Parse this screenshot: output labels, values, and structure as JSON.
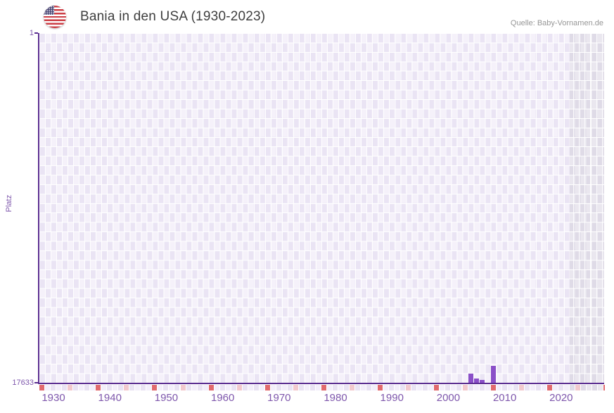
{
  "header": {
    "title": "Bania in den USA (1930-2023)",
    "source": "Quelle: Baby-Vornamen.de",
    "flag_icon": "usa-flag-icon"
  },
  "chart_data": {
    "type": "bar",
    "title": "Bania in den USA (1930-2023)",
    "xlabel": "",
    "ylabel": "Platz",
    "y_axis_top_label": "1",
    "y_axis_bottom_label": "17633",
    "y_domain": [
      1,
      17633
    ],
    "y_inverted": true,
    "x_domain": [
      1928,
      2028
    ],
    "x_ticks": [
      "1930",
      "1940",
      "1950",
      "1960",
      "1970",
      "1980",
      "1990",
      "2000",
      "2010",
      "2020"
    ],
    "grid": true,
    "legend": false,
    "points": [
      {
        "year": 2004,
        "rank": 17160
      },
      {
        "year": 2005,
        "rank": 17420
      },
      {
        "year": 2006,
        "rank": 17490
      },
      {
        "year": 2008,
        "rank": 16780
      }
    ],
    "no_data_band": {
      "from": 2022,
      "to": 2028
    },
    "axis_markers": {
      "red_years": [
        1928,
        1938,
        1948,
        1958,
        1968,
        1978,
        1988,
        1998,
        2008,
        2018,
        2028
      ],
      "pink_years": [
        1933,
        1943,
        1953,
        1963,
        1973,
        1983,
        1993,
        2003,
        2013,
        2023
      ]
    },
    "colors": {
      "bar": "#8a4fc8",
      "axis": "#5b2e91",
      "tick_label": "#7e57ac",
      "cell_light": "#f5f1fa",
      "cell_dark": "#eae4f4",
      "band_light": "#eae7ef",
      "band_dark": "#dfdbe7",
      "marker_red": "#e16a6e",
      "marker_pink": "#f2c9ce",
      "row_light": "#f3effa",
      "row_dark": "#e9e3f3",
      "title_text": "#3e3e3e",
      "source_text": "#969696"
    }
  }
}
